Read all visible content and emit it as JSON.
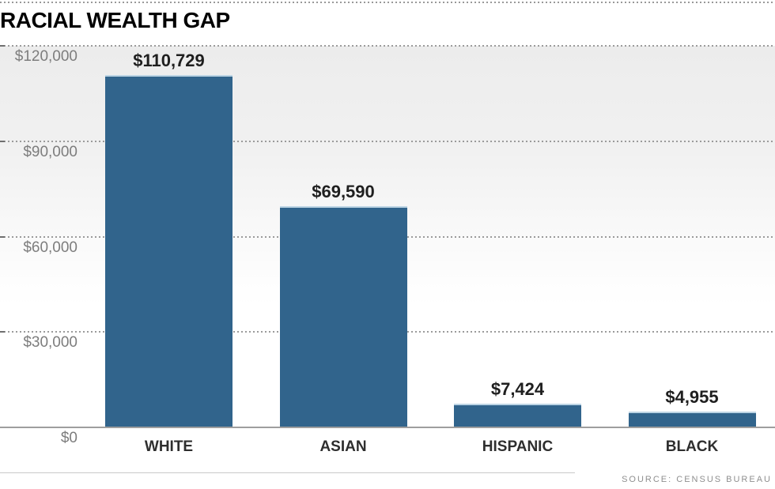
{
  "title": "RACIAL WEALTH GAP",
  "source": "SOURCE: CENSUS BUREAU",
  "colors": {
    "bar": "#31648c",
    "bar_top_highlight": "#bcd4e4",
    "gridline": "#9b9b9b",
    "baseline": "#9e9e9e",
    "axis_label": "#7d7d7d",
    "value_label": "#1f1f1f",
    "category_label": "#2e2e2e",
    "title_text": "#000000",
    "source_text": "#8f8f8f",
    "plot_gradient_top": "#ececec",
    "plot_gradient_bottom": "#ffffff"
  },
  "chart_data": {
    "type": "bar",
    "title": "RACIAL WEALTH GAP",
    "categories": [
      "WHITE",
      "ASIAN",
      "HISPANIC",
      "BLACK"
    ],
    "values": [
      110729,
      69590,
      7424,
      4955
    ],
    "value_labels": [
      "$110,729",
      "$69,590",
      "$7,424",
      "$4,955"
    ],
    "y_ticks": [
      {
        "value": 120000,
        "label": "$120,000"
      },
      {
        "value": 90000,
        "label": "$90,000"
      },
      {
        "value": 60000,
        "label": "$60,000"
      },
      {
        "value": 30000,
        "label": "$30,000"
      },
      {
        "value": 0,
        "label": "$0"
      }
    ],
    "ylim": [
      0,
      120000
    ],
    "xlabel": "",
    "ylabel": "",
    "grid": "horizontal-dotted",
    "legend": "none",
    "source": "SOURCE: CENSUS BUREAU"
  }
}
